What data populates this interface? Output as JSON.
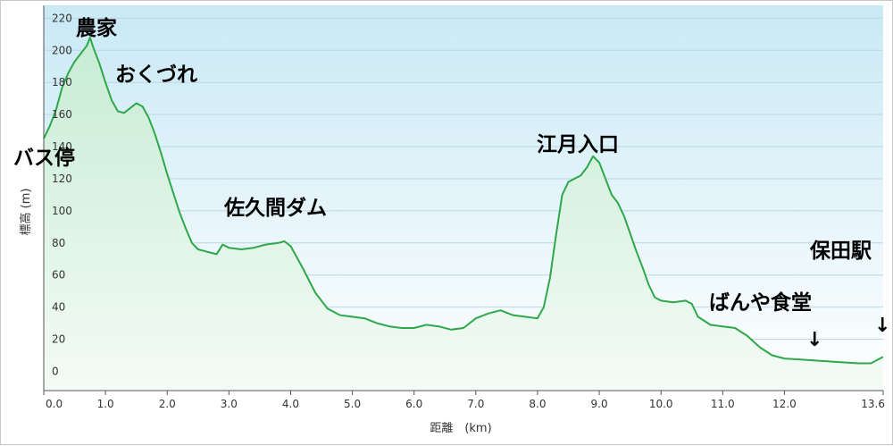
{
  "chart_data": {
    "type": "area",
    "title": "",
    "xlabel": "距離　(km)",
    "ylabel": "標高 (m)",
    "xlim": [
      0.0,
      13.6
    ],
    "ylim": [
      -12,
      228
    ],
    "x_ticks": [
      0.0,
      1.0,
      2.0,
      3.0,
      4.0,
      5.0,
      6.0,
      7.0,
      8.0,
      9.0,
      10.0,
      11.0,
      12.0,
      13.6
    ],
    "x_tick_labels": [
      "0.0",
      "1.0",
      "2.0",
      "3.0",
      "4.0",
      "5.0",
      "6.0",
      "7.0",
      "8.0",
      "9.0",
      "10.0",
      "11.0",
      "12.0",
      "13.6"
    ],
    "y_ticks": [
      0,
      20,
      40,
      60,
      80,
      100,
      120,
      140,
      160,
      180,
      200,
      220
    ],
    "y_tick_labels": [
      "0",
      "20",
      "40",
      "60",
      "80",
      "100",
      "120",
      "140",
      "160",
      "180",
      "200",
      "220"
    ],
    "grid": "horizontal",
    "colors": {
      "line": "#2ea84a",
      "fill_top": "#c7ecd4",
      "fill_bottom": "#f4fbf6",
      "bg_top": "#c9e9f5",
      "bg_bottom": "#ffffff",
      "grid": "#bcd7e6"
    },
    "series": [
      {
        "x": [
          0.0,
          0.1,
          0.2,
          0.3,
          0.4,
          0.5,
          0.6,
          0.7,
          0.75,
          0.8,
          0.9,
          1.0,
          1.1,
          1.2,
          1.3,
          1.4,
          1.5,
          1.6,
          1.7,
          1.8,
          1.9,
          2.0,
          2.1,
          2.2,
          2.3,
          2.4,
          2.5,
          2.6,
          2.7,
          2.8,
          2.9,
          3.0,
          3.2,
          3.4,
          3.6,
          3.8,
          3.9,
          4.0,
          4.2,
          4.4,
          4.6,
          4.8,
          5.0,
          5.2,
          5.4,
          5.6,
          5.8,
          6.0,
          6.2,
          6.4,
          6.6,
          6.8,
          7.0,
          7.2,
          7.4,
          7.6,
          7.8,
          8.0,
          8.1,
          8.2,
          8.3,
          8.4,
          8.5,
          8.6,
          8.7,
          8.8,
          8.9,
          9.0,
          9.1,
          9.2,
          9.3,
          9.4,
          9.5,
          9.6,
          9.7,
          9.8,
          9.9,
          10.0,
          10.2,
          10.4,
          10.5,
          10.6,
          10.8,
          11.0,
          11.2,
          11.4,
          11.6,
          11.8,
          12.0,
          12.4,
          12.8,
          13.2,
          13.4,
          13.6
        ],
        "y": [
          145,
          153,
          163,
          177,
          186,
          193,
          198,
          203,
          208,
          202,
          192,
          180,
          169,
          162,
          161,
          164,
          167,
          165,
          158,
          148,
          136,
          123,
          111,
          99,
          89,
          80,
          76,
          75,
          74,
          73,
          79,
          77,
          76,
          77,
          79,
          80,
          81,
          78,
          64,
          49,
          39,
          35,
          34,
          33,
          30,
          28,
          27,
          27,
          29,
          28,
          26,
          27,
          33,
          36,
          38,
          35,
          34,
          33,
          40,
          58,
          85,
          110,
          118,
          120,
          122,
          127,
          134,
          130,
          120,
          110,
          105,
          97,
          86,
          75,
          65,
          54,
          46,
          44,
          43,
          44,
          42,
          34,
          29,
          28,
          27,
          22,
          15,
          10,
          8,
          7,
          6,
          5,
          5,
          9
        ]
      }
    ],
    "annotations": [
      "バス停",
      "農家",
      "おくづれ",
      "佐久間ダム",
      "江月入口",
      "ばんや食堂",
      "保田駅"
    ],
    "arrows": [
      "↓",
      "↓"
    ]
  }
}
